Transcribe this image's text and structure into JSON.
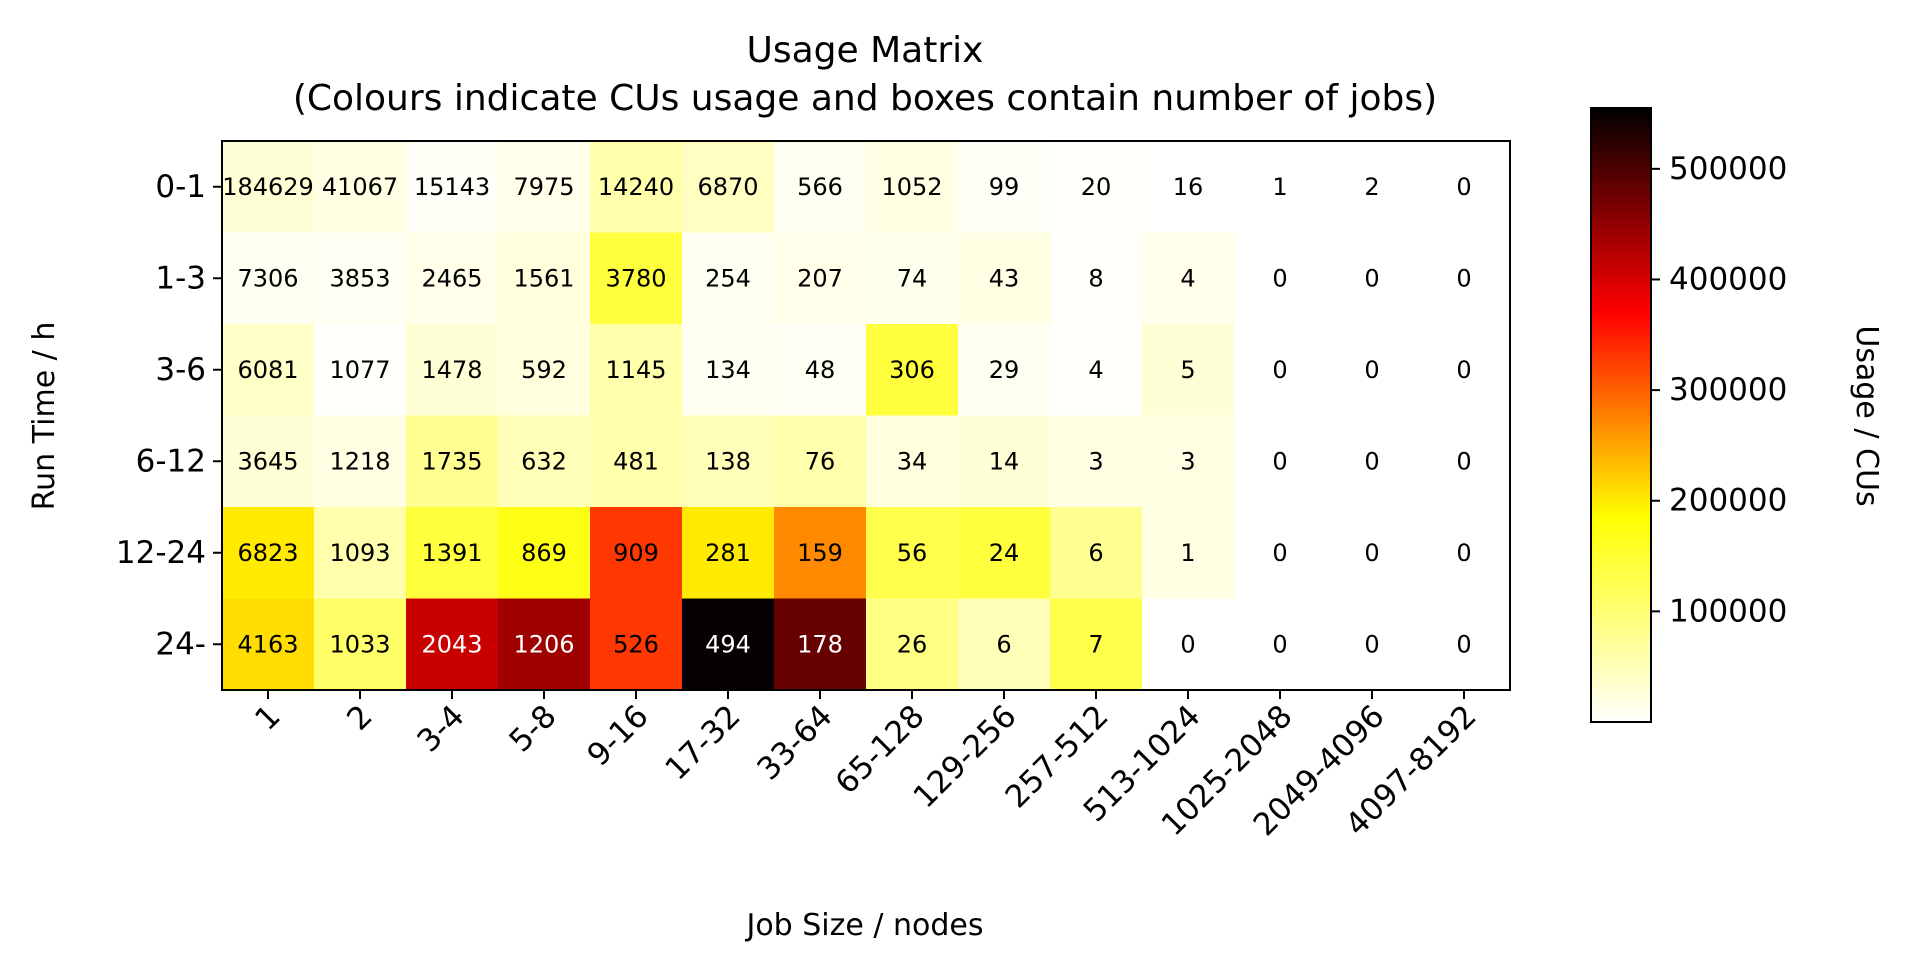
{
  "chart_data": {
    "type": "heatmap",
    "title": "Usage Matrix",
    "subtitle": "(Colours indicate CUs usage and boxes contain number of jobs)",
    "xlabel": "Job Size / nodes",
    "ylabel": "Run Time / h",
    "colorbar_label": "Usage / CUs",
    "colormap": "hot_r",
    "x_categories": [
      "1",
      "2",
      "3-4",
      "5-8",
      "9-16",
      "17-32",
      "33-64",
      "65-128",
      "129-256",
      "257-512",
      "513-1024",
      "1025-2048",
      "2049-4096",
      "4097-8192"
    ],
    "y_categories": [
      "0-1",
      "1-3",
      "3-6",
      "6-12",
      "12-24",
      "24-"
    ],
    "job_counts": [
      [
        "184629",
        "41067",
        "15143",
        "7975",
        "14240",
        "6870",
        "566",
        "1052",
        "99",
        "20",
        "16",
        "1",
        "2",
        "0"
      ],
      [
        "7306",
        "3853",
        "2465",
        "1561",
        "3780",
        "254",
        "207",
        "74",
        "43",
        "8",
        "4",
        "0",
        "0",
        "0"
      ],
      [
        "6081",
        "1077",
        "1478",
        "592",
        "1145",
        "134",
        "48",
        "306",
        "29",
        "4",
        "5",
        "0",
        "0",
        "0"
      ],
      [
        "3645",
        "1218",
        "1735",
        "632",
        "481",
        "138",
        "76",
        "34",
        "14",
        "3",
        "3",
        "0",
        "0",
        "0"
      ],
      [
        "6823",
        "1093",
        "1391",
        "869",
        "909",
        "281",
        "159",
        "56",
        "24",
        "6",
        "1",
        "0",
        "0",
        "0"
      ],
      [
        "4163",
        "1033",
        "2043",
        "1206",
        "526",
        "494",
        "178",
        "26",
        "6",
        "7",
        "0",
        "0",
        "0",
        "0"
      ]
    ],
    "usage_cus": [
      [
        30000,
        20000,
        5000,
        15000,
        60000,
        45000,
        10000,
        20000,
        5000,
        2000,
        1500,
        0,
        0,
        0
      ],
      [
        10000,
        8000,
        15000,
        25000,
        140000,
        10000,
        15000,
        12000,
        20000,
        3000,
        15000,
        0,
        0,
        0
      ],
      [
        40000,
        3000,
        30000,
        25000,
        60000,
        10000,
        8000,
        140000,
        10000,
        3000,
        30000,
        0,
        0,
        0
      ],
      [
        30000,
        20000,
        80000,
        50000,
        60000,
        50000,
        60000,
        25000,
        30000,
        20000,
        20000,
        0,
        0,
        0
      ],
      [
        200000,
        60000,
        140000,
        170000,
        330000,
        200000,
        270000,
        130000,
        140000,
        80000,
        20000,
        0,
        0,
        0
      ],
      [
        210000,
        110000,
        410000,
        440000,
        330000,
        550000,
        480000,
        90000,
        50000,
        130000,
        0,
        0,
        0,
        0
      ]
    ],
    "vmin": 0,
    "vmax": 555000,
    "colorbar_ticks": [
      100000,
      200000,
      300000,
      400000,
      500000
    ],
    "colorbar_tick_labels": [
      "100000",
      "200000",
      "300000",
      "400000",
      "500000"
    ],
    "grid": false
  }
}
